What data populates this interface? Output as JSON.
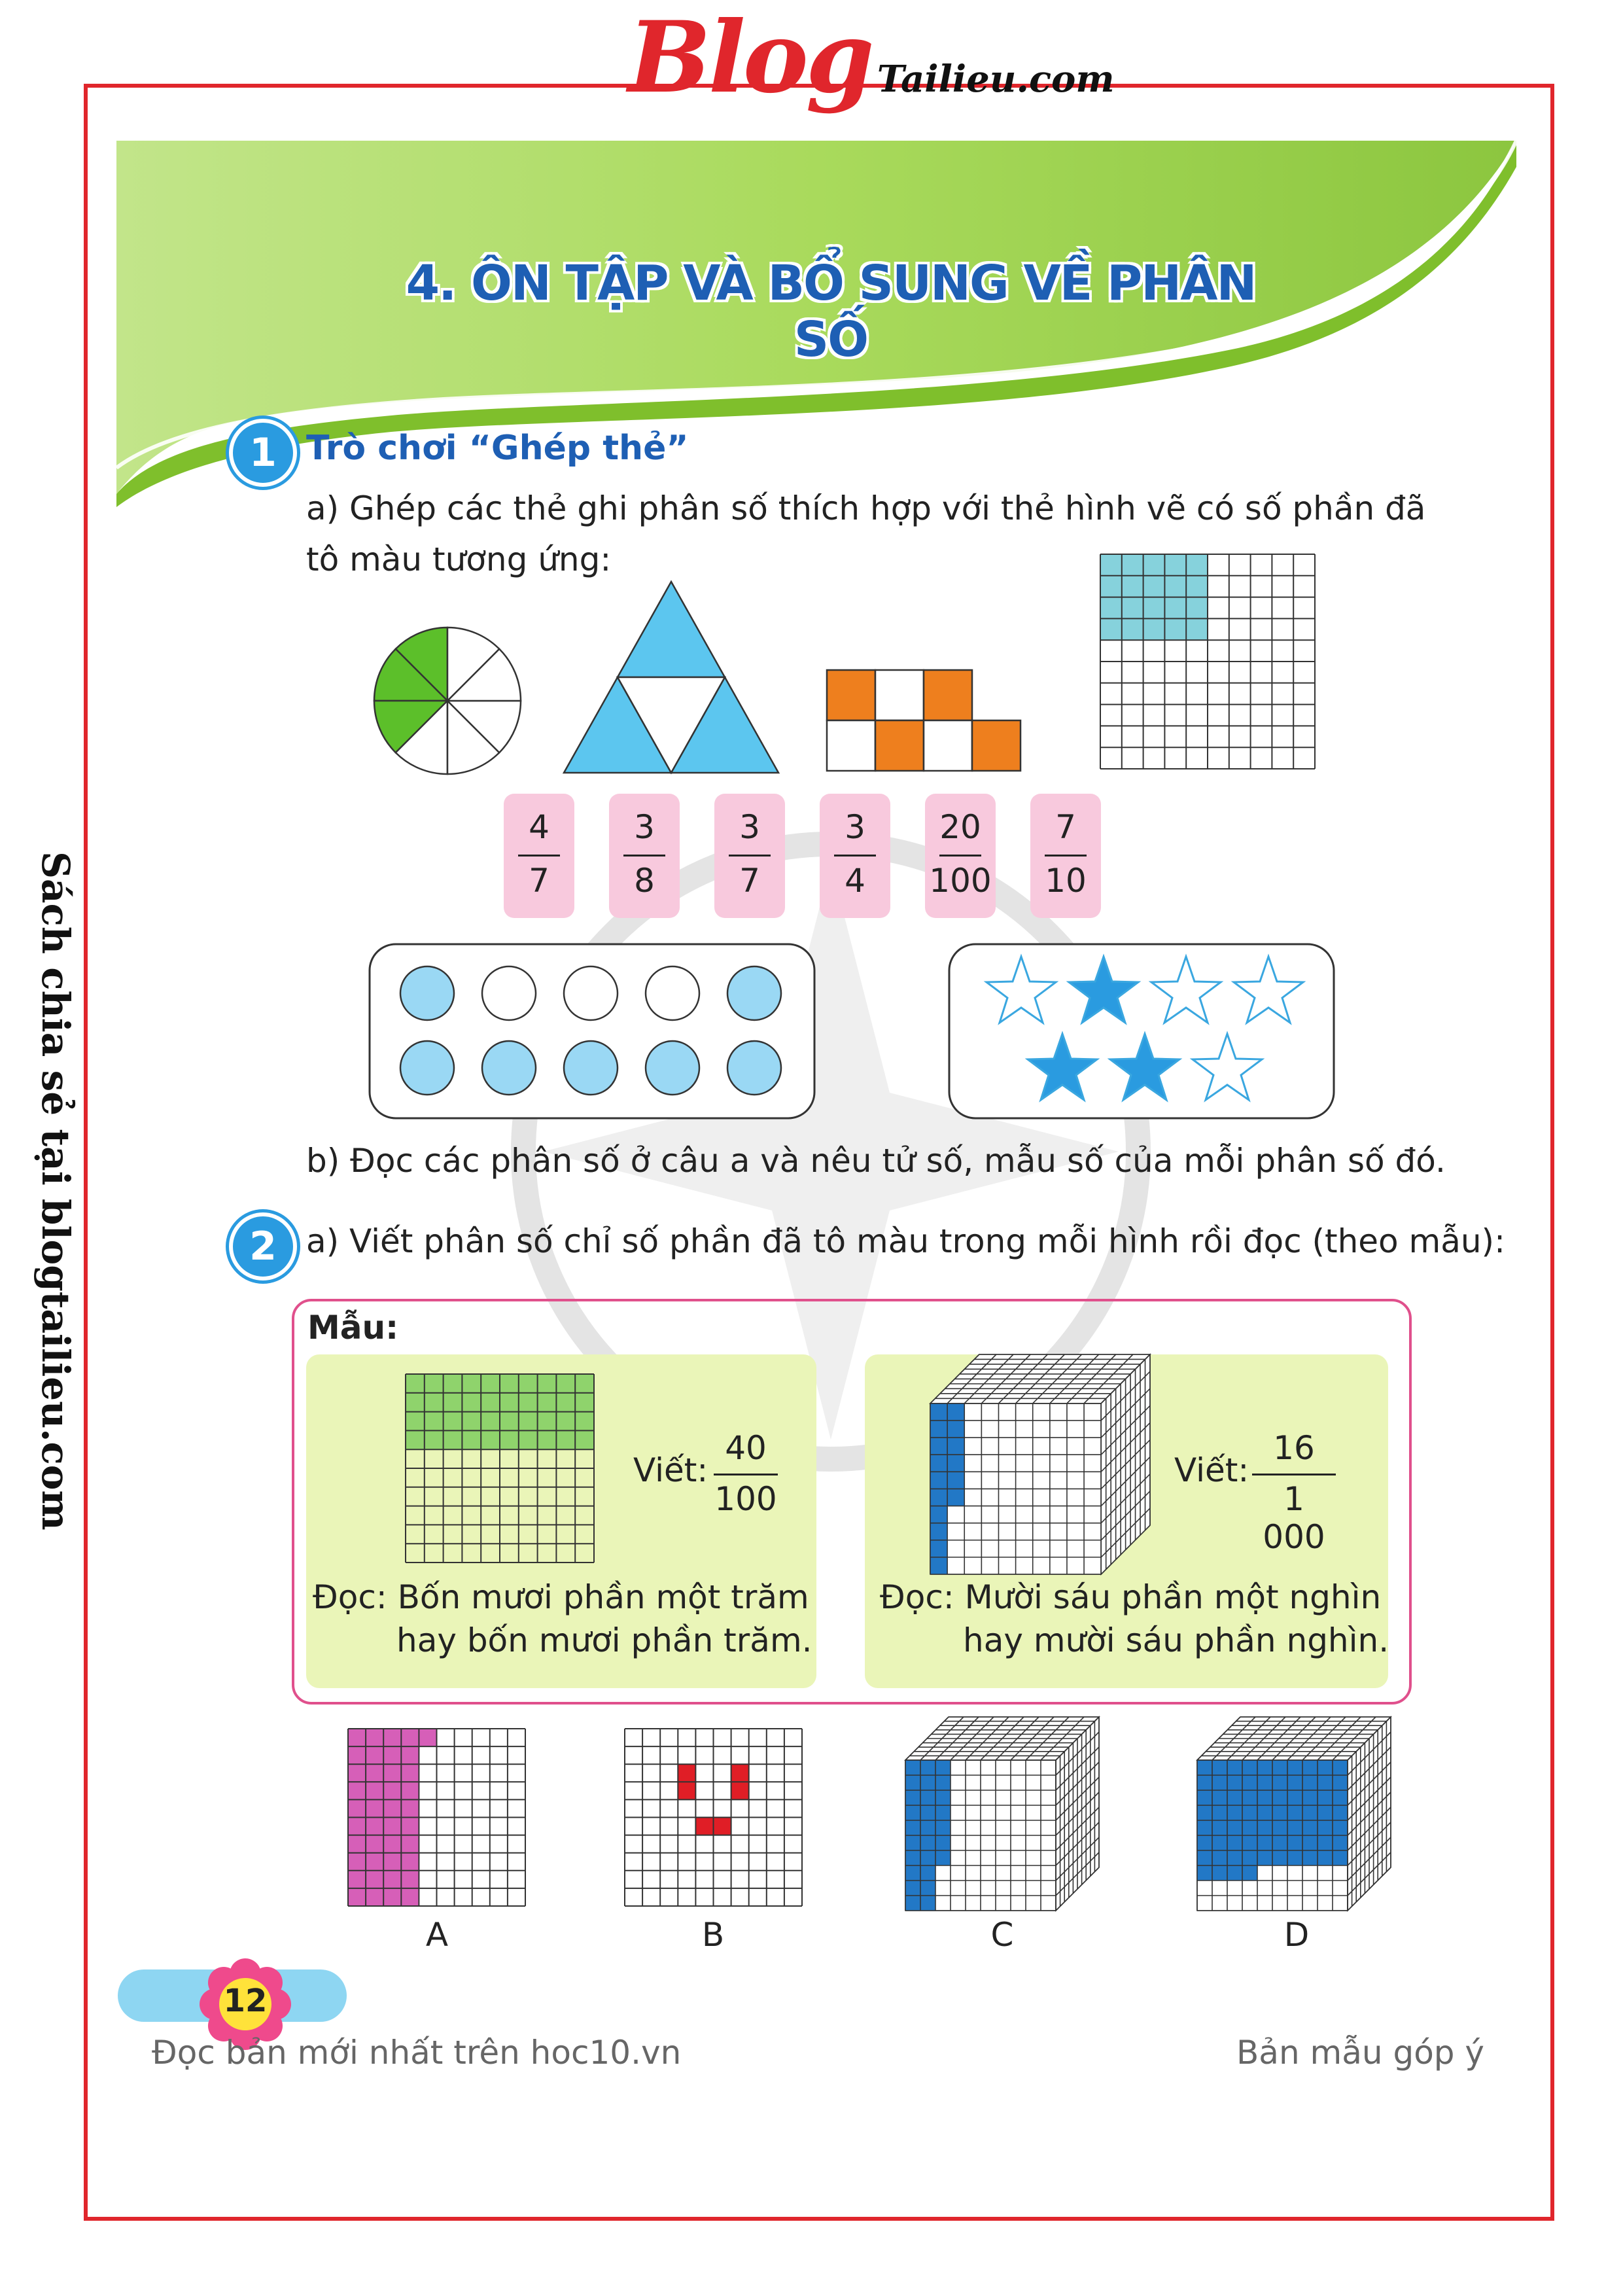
{
  "header": {
    "logo_main": "Blog",
    "logo_sub": "Tailieu.com",
    "side_text": "Sách chia sẻ tại blogtailieu.com"
  },
  "lesson": {
    "title": "4. ÔN TẬP VÀ BỔ SUNG VỀ PHÂN SỐ"
  },
  "exercise1": {
    "number": "1",
    "heading": "Trò chơi “Ghép thẻ”",
    "part_a_line1": "a) Ghép các thẻ ghi phân số thích hợp với thẻ hình vẽ có số phần đã",
    "part_a_line2": "tô màu tương ứng:",
    "cards": [
      {
        "num": "4",
        "den": "7"
      },
      {
        "num": "3",
        "den": "8"
      },
      {
        "num": "3",
        "den": "7"
      },
      {
        "num": "3",
        "den": "4"
      },
      {
        "num": "20",
        "den": "100"
      },
      {
        "num": "7",
        "den": "10"
      }
    ],
    "part_b": "b) Đọc các phân số ở câu a và nêu tử số, mẫu số của mỗi phân số đó."
  },
  "exercise2": {
    "number": "2",
    "part_a": "a) Viết phân số chỉ số phần đã tô màu trong mỗi hình rồi đọc (theo mẫu):",
    "example_label": "Mẫu:",
    "example1": {
      "write_label": "Viết:",
      "num": "40",
      "den": "100",
      "read_line1": "Đọc: Bốn mươi phần một trăm",
      "read_line2": "hay bốn mươi phần trăm."
    },
    "example2": {
      "write_label": "Viết:",
      "num": "16",
      "den": "1 000",
      "read_line1": "Đọc: Mười sáu phần một nghìn",
      "read_line2": "hay mười sáu phần nghìn."
    },
    "figure_labels": [
      "A",
      "B",
      "C",
      "D"
    ]
  },
  "footer": {
    "page_number": "12",
    "left_text": "Đọc bản mới nhất trên hoc10.vn",
    "right_text": "Bản mẫu góp ý"
  },
  "colors": {
    "frame": "#e0262c",
    "title_blue": "#1e5fb4",
    "badge_blue": "#2a9be0",
    "card_pink": "#f8c9dd",
    "green": "#5cbf2a",
    "light_blue": "#5cc6ef",
    "orange": "#ee7f1e",
    "teal": "#86d2dc",
    "magenta": "#d65fb8",
    "red": "#e01e26",
    "cube_blue": "#2278c6"
  }
}
